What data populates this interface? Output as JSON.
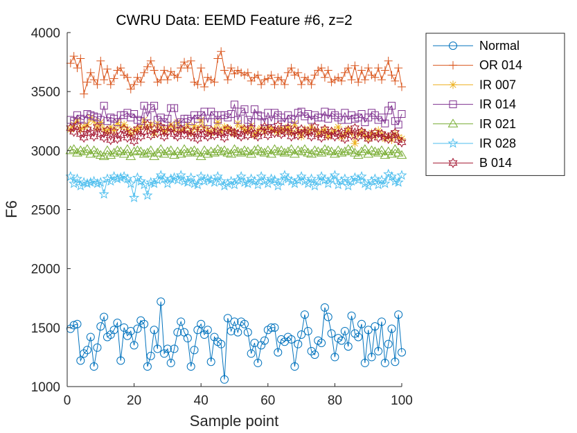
{
  "chart_data": {
    "type": "line",
    "title": "CWRU Data: EEMD Feature #6, z=2",
    "xlabel": "Sample point",
    "ylabel": "F6",
    "xlim": [
      0,
      100
    ],
    "ylim": [
      1000,
      4000
    ],
    "xticks": [
      "0",
      "20",
      "40",
      "60",
      "80",
      "100"
    ],
    "yticks": [
      "1000",
      "1500",
      "2000",
      "2500",
      "3000",
      "3500",
      "4000"
    ],
    "legend_position": "outside-right-top",
    "grid": false,
    "x": [
      1,
      2,
      3,
      4,
      5,
      6,
      7,
      8,
      9,
      10,
      11,
      12,
      13,
      14,
      15,
      16,
      17,
      18,
      19,
      20,
      21,
      22,
      23,
      24,
      25,
      26,
      27,
      28,
      29,
      30,
      31,
      32,
      33,
      34,
      35,
      36,
      37,
      38,
      39,
      40,
      41,
      42,
      43,
      44,
      45,
      46,
      47,
      48,
      49,
      50,
      51,
      52,
      53,
      54,
      55,
      56,
      57,
      58,
      59,
      60,
      61,
      62,
      63,
      64,
      65,
      66,
      67,
      68,
      69,
      70,
      71,
      72,
      73,
      74,
      75,
      76,
      77,
      78,
      79,
      80,
      81,
      82,
      83,
      84,
      85,
      86,
      87,
      88,
      89,
      90,
      91,
      92,
      93,
      94,
      95,
      96,
      97,
      98,
      99,
      100
    ],
    "series": [
      {
        "name": "Normal",
        "color": "#0072BD",
        "marker": "circle",
        "values": [
          1490,
          1520,
          1530,
          1220,
          1280,
          1310,
          1420,
          1170,
          1330,
          1510,
          1590,
          1420,
          1440,
          1480,
          1540,
          1220,
          1500,
          1430,
          1470,
          1350,
          1490,
          1560,
          1530,
          1170,
          1260,
          1480,
          1320,
          1720,
          1280,
          1320,
          1200,
          1320,
          1460,
          1550,
          1460,
          1410,
          1170,
          1310,
          1480,
          1530,
          1440,
          1480,
          1210,
          1420,
          1380,
          1360,
          1060,
          1580,
          1470,
          1550,
          1460,
          1550,
          1530,
          1460,
          1280,
          1370,
          1200,
          1350,
          1390,
          1480,
          1500,
          1500,
          1290,
          1400,
          1380,
          1420,
          1400,
          1170,
          1360,
          1440,
          1610,
          1470,
          1300,
          1270,
          1390,
          1370,
          1670,
          1590,
          1450,
          1250,
          1410,
          1390,
          1470,
          1340,
          1600,
          1450,
          1420,
          1530,
          1200,
          1480,
          1250,
          1510,
          1300,
          1550,
          1200,
          1360,
          1490,
          1210,
          1610,
          1290
        ]
      },
      {
        "name": "OR 014",
        "color": "#D95319",
        "marker": "plus",
        "values": [
          3740,
          3800,
          3700,
          3780,
          3480,
          3580,
          3660,
          3600,
          3560,
          3760,
          3600,
          3690,
          3560,
          3610,
          3680,
          3700,
          3640,
          3620,
          3520,
          3560,
          3620,
          3580,
          3660,
          3710,
          3760,
          3680,
          3580,
          3600,
          3680,
          3600,
          3670,
          3640,
          3620,
          3700,
          3750,
          3700,
          3760,
          3580,
          3560,
          3700,
          3540,
          3620,
          3600,
          3580,
          3780,
          3840,
          3680,
          3600,
          3700,
          3650,
          3680,
          3660,
          3640,
          3660,
          3590,
          3620,
          3640,
          3560,
          3600,
          3610,
          3640,
          3560,
          3620,
          3600,
          3560,
          3660,
          3700,
          3640,
          3660,
          3560,
          3620,
          3600,
          3560,
          3640,
          3680,
          3700,
          3620,
          3680,
          3580,
          3600,
          3620,
          3590,
          3660,
          3700,
          3600,
          3720,
          3580,
          3680,
          3600,
          3700,
          3640,
          3620,
          3700,
          3600,
          3680,
          3760,
          3640,
          3590,
          3700,
          3540
        ]
      },
      {
        "name": "IR 007",
        "color": "#EDB120",
        "marker": "asterisk",
        "values": [
          3180,
          3220,
          3260,
          3180,
          3200,
          3220,
          3280,
          3250,
          3190,
          3240,
          3180,
          3160,
          3200,
          3170,
          3240,
          3200,
          3220,
          3180,
          3140,
          3170,
          3180,
          3200,
          3260,
          3190,
          3220,
          3140,
          3230,
          3200,
          3160,
          3180,
          3220,
          3180,
          3240,
          3170,
          3190,
          3220,
          3150,
          3210,
          3180,
          3260,
          3200,
          3170,
          3150,
          3180,
          3240,
          3160,
          3200,
          3190,
          3170,
          3140,
          3230,
          3200,
          3180,
          3160,
          3210,
          3130,
          3170,
          3190,
          3160,
          3200,
          3180,
          3170,
          3150,
          3190,
          3170,
          3200,
          3150,
          3230,
          3160,
          3120,
          3180,
          3150,
          3200,
          3170,
          3140,
          3160,
          3180,
          3120,
          3150,
          3170,
          3200,
          3110,
          3140,
          3180,
          3150,
          3060,
          3140,
          3160,
          3130,
          3100,
          3150,
          3120,
          3170,
          3140,
          3100,
          3120,
          3090,
          3140,
          3110,
          3100
        ]
      },
      {
        "name": "IR 014",
        "color": "#7E2F8E",
        "marker": "square",
        "values": [
          3260,
          3250,
          3300,
          3270,
          3260,
          3310,
          3300,
          3290,
          3280,
          3260,
          3380,
          3250,
          3280,
          3270,
          3240,
          3300,
          3300,
          3320,
          3280,
          3310,
          3260,
          3250,
          3380,
          3290,
          3360,
          3380,
          3260,
          3280,
          3240,
          3270,
          3360,
          3360,
          3220,
          3240,
          3270,
          3270,
          3250,
          3300,
          3270,
          3300,
          3330,
          3240,
          3330,
          3300,
          3260,
          3300,
          3300,
          3280,
          3310,
          3390,
          3260,
          3330,
          3350,
          3260,
          3240,
          3350,
          3300,
          3290,
          3240,
          3320,
          3250,
          3320,
          3300,
          3280,
          3240,
          3300,
          3270,
          3260,
          3320,
          3330,
          3290,
          3310,
          3260,
          3300,
          3280,
          3280,
          3330,
          3270,
          3320,
          3300,
          3280,
          3260,
          3320,
          3260,
          3300,
          3270,
          3280,
          3310,
          3240,
          3280,
          3320,
          3300,
          3260,
          3280,
          3230,
          3340,
          3380,
          3250,
          3220,
          3310
        ]
      },
      {
        "name": "IR 021",
        "color": "#77AC30",
        "marker": "triangle",
        "values": [
          3000,
          3010,
          2980,
          3000,
          2990,
          3010,
          2970,
          3000,
          2980,
          2960,
          2950,
          3000,
          2960,
          2980,
          3000,
          2990,
          2970,
          3010,
          2950,
          2990,
          3000,
          2990,
          2970,
          2980,
          3000,
          2950,
          2980,
          3010,
          2970,
          2990,
          3000,
          2960,
          2990,
          2970,
          3010,
          2980,
          2990,
          3000,
          2980,
          2950,
          3000,
          2970,
          2990,
          2980,
          3010,
          2990,
          3000,
          2980,
          2970,
          3010,
          2990,
          2980,
          3000,
          2990,
          2970,
          3000,
          3010,
          2990,
          2980,
          3000,
          2970,
          3010,
          2990,
          3000,
          2980,
          2990,
          3010,
          2970,
          3000,
          2990,
          3010,
          2980,
          2970,
          3000,
          2990,
          2980,
          3010,
          3000,
          2990,
          2970,
          3000,
          2980,
          2990,
          3010,
          3000,
          2980,
          2960,
          2990,
          3010,
          2970,
          3000,
          2990,
          2980,
          3000,
          2960,
          2990,
          2970,
          3010,
          2980,
          2960
        ]
      },
      {
        "name": "IR 028",
        "color": "#4DBEEE",
        "marker": "pentagram",
        "values": [
          2780,
          2720,
          2760,
          2700,
          2730,
          2720,
          2730,
          2740,
          2720,
          2730,
          2630,
          2760,
          2740,
          2780,
          2760,
          2770,
          2780,
          2760,
          2720,
          2600,
          2770,
          2740,
          2710,
          2620,
          2730,
          2720,
          2750,
          2790,
          2760,
          2720,
          2760,
          2770,
          2750,
          2790,
          2740,
          2730,
          2770,
          2720,
          2710,
          2780,
          2740,
          2760,
          2750,
          2730,
          2780,
          2740,
          2700,
          2720,
          2740,
          2710,
          2750,
          2780,
          2730,
          2720,
          2760,
          2740,
          2710,
          2780,
          2740,
          2720,
          2760,
          2750,
          2700,
          2740,
          2790,
          2760,
          2740,
          2720,
          2750,
          2780,
          2740,
          2720,
          2760,
          2700,
          2740,
          2780,
          2750,
          2720,
          2760,
          2790,
          2710,
          2740,
          2760,
          2700,
          2740,
          2770,
          2750,
          2780,
          2720,
          2700,
          2740,
          2760,
          2710,
          2750,
          2720,
          2800,
          2780,
          2740,
          2730,
          2790
        ]
      },
      {
        "name": "B 014",
        "color": "#A2142F",
        "marker": "hexagram",
        "values": [
          3190,
          3160,
          3210,
          3140,
          3110,
          3180,
          3150,
          3120,
          3200,
          3140,
          3110,
          3170,
          3090,
          3160,
          3100,
          3130,
          3180,
          3110,
          3150,
          3080,
          3180,
          3120,
          3160,
          3220,
          3130,
          3180,
          3150,
          3200,
          3120,
          3160,
          3190,
          3140,
          3120,
          3180,
          3140,
          3170,
          3120,
          3160,
          3100,
          3180,
          3140,
          3120,
          3170,
          3130,
          3160,
          3150,
          3110,
          3180,
          3160,
          3150,
          3140,
          3120,
          3180,
          3130,
          3190,
          3140,
          3120,
          3160,
          3200,
          3130,
          3180,
          3150,
          3210,
          3140,
          3160,
          3190,
          3120,
          3170,
          3130,
          3180,
          3150,
          3160,
          3120,
          3200,
          3140,
          3110,
          3180,
          3130,
          3160,
          3120,
          3140,
          3150,
          3100,
          3170,
          3130,
          3190,
          3120,
          3160,
          3140,
          3100,
          3130,
          3150,
          3110,
          3140,
          3120,
          3100,
          3130,
          3150,
          3090,
          3070
        ]
      }
    ]
  }
}
